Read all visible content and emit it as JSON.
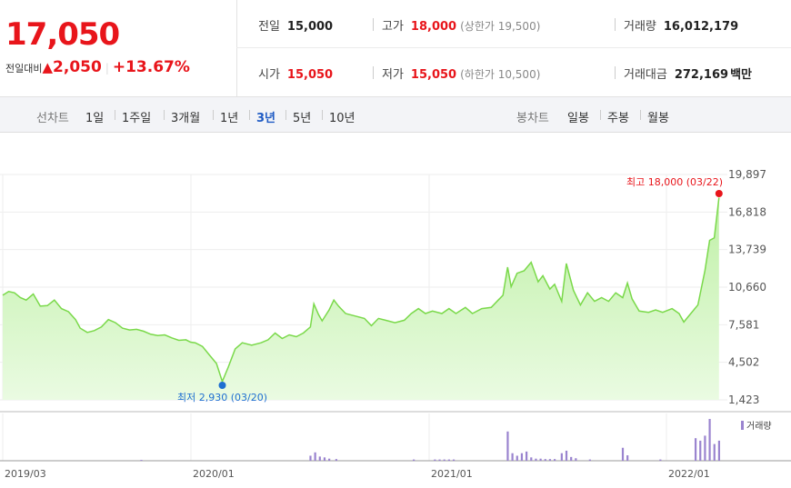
{
  "quote": {
    "price": "17,050",
    "change_label": "전일대비",
    "change_arrow": "▲",
    "change": "2,050",
    "change_pct": "+13.67%",
    "prev_close_label": "전일",
    "prev_close": "15,000",
    "high_label": "고가",
    "high": "18,000",
    "upper_limit": "(상한가 19,500)",
    "volume_label": "거래량",
    "volume": "16,012,179",
    "open_label": "시가",
    "open": "15,050",
    "low_label": "저가",
    "low": "15,050",
    "lower_limit": "(하한가 10,500)",
    "trade_value_label": "거래대금",
    "trade_value": "272,169",
    "trade_value_unit": "백만"
  },
  "toolbar": {
    "line_chart_label": "선차트",
    "periods": [
      "1일",
      "1주일",
      "3개월",
      "1년",
      "3년",
      "5년",
      "10년"
    ],
    "selected_period": "3년",
    "candle_chart_label": "봉차트",
    "candles": [
      "일봉",
      "주봉",
      "월봉"
    ]
  },
  "colors": {
    "up": "#e8151b",
    "selected": "#1f5bc4",
    "line": "#7ad94a",
    "volume": "#9a84cf",
    "low_marker": "#1f6fd1"
  },
  "chart_data": {
    "type": "area",
    "y_ticks": [
      "19,897",
      "16,818",
      "13,739",
      "10,660",
      "7,581",
      "4,502",
      "1,423"
    ],
    "ylim": [
      1423,
      19897
    ],
    "x_ticks": [
      "2019/03",
      "2020/01",
      "2021/01",
      "2022/01"
    ],
    "grid": true,
    "high_annotation": "최고 18,000 (03/22)",
    "low_annotation": "최저 2,930 (03/20)",
    "volume_legend": "거래량",
    "price_series": [
      [
        0.0,
        10000
      ],
      [
        0.25,
        10300
      ],
      [
        0.5,
        10200
      ],
      [
        0.75,
        9800
      ],
      [
        1.0,
        9600
      ],
      [
        1.3,
        10100
      ],
      [
        1.6,
        9100
      ],
      [
        1.9,
        9150
      ],
      [
        2.2,
        9600
      ],
      [
        2.5,
        8900
      ],
      [
        2.8,
        8650
      ],
      [
        3.1,
        8000
      ],
      [
        3.3,
        7300
      ],
      [
        3.6,
        6950
      ],
      [
        3.9,
        7100
      ],
      [
        4.2,
        7400
      ],
      [
        4.5,
        8000
      ],
      [
        4.8,
        7750
      ],
      [
        5.1,
        7300
      ],
      [
        5.4,
        7150
      ],
      [
        5.7,
        7200
      ],
      [
        6.0,
        7050
      ],
      [
        6.3,
        6800
      ],
      [
        6.6,
        6700
      ],
      [
        6.9,
        6750
      ],
      [
        7.2,
        6500
      ],
      [
        7.5,
        6300
      ],
      [
        7.8,
        6350
      ],
      [
        8.0,
        6150
      ],
      [
        8.2,
        6100
      ],
      [
        8.5,
        5800
      ],
      [
        8.8,
        5100
      ],
      [
        9.1,
        4400
      ],
      [
        9.35,
        2930
      ],
      [
        9.6,
        4100
      ],
      [
        9.9,
        5600
      ],
      [
        10.2,
        6100
      ],
      [
        10.6,
        5900
      ],
      [
        11.0,
        6100
      ],
      [
        11.3,
        6350
      ],
      [
        11.6,
        6900
      ],
      [
        11.9,
        6450
      ],
      [
        12.2,
        6750
      ],
      [
        12.5,
        6600
      ],
      [
        12.8,
        6900
      ],
      [
        13.1,
        7400
      ],
      [
        13.25,
        9300
      ],
      [
        13.45,
        8400
      ],
      [
        13.6,
        7900
      ],
      [
        13.9,
        8800
      ],
      [
        14.1,
        9600
      ],
      [
        14.3,
        9100
      ],
      [
        14.6,
        8500
      ],
      [
        15.0,
        8300
      ],
      [
        15.4,
        8100
      ],
      [
        15.7,
        7500
      ],
      [
        16.0,
        8100
      ],
      [
        16.3,
        7950
      ],
      [
        16.7,
        7750
      ],
      [
        17.1,
        7950
      ],
      [
        17.4,
        8500
      ],
      [
        17.7,
        8900
      ],
      [
        18.0,
        8500
      ],
      [
        18.3,
        8700
      ],
      [
        18.7,
        8500
      ],
      [
        19.0,
        8900
      ],
      [
        19.3,
        8500
      ],
      [
        19.7,
        9000
      ],
      [
        20.0,
        8500
      ],
      [
        20.4,
        8900
      ],
      [
        20.8,
        9000
      ],
      [
        21.1,
        9600
      ],
      [
        21.3,
        10000
      ],
      [
        21.5,
        12300
      ],
      [
        21.65,
        10700
      ],
      [
        21.9,
        11800
      ],
      [
        22.2,
        12000
      ],
      [
        22.5,
        12700
      ],
      [
        22.8,
        11100
      ],
      [
        23.0,
        11600
      ],
      [
        23.3,
        10500
      ],
      [
        23.5,
        10900
      ],
      [
        23.8,
        9500
      ],
      [
        24.0,
        12600
      ],
      [
        24.3,
        10400
      ],
      [
        24.6,
        9200
      ],
      [
        24.9,
        10200
      ],
      [
        25.2,
        9500
      ],
      [
        25.5,
        9800
      ],
      [
        25.8,
        9500
      ],
      [
        26.1,
        10200
      ],
      [
        26.4,
        9800
      ],
      [
        26.6,
        11000
      ],
      [
        26.8,
        9700
      ],
      [
        27.1,
        8700
      ],
      [
        27.5,
        8600
      ],
      [
        27.8,
        8800
      ],
      [
        28.1,
        8600
      ],
      [
        28.5,
        8900
      ],
      [
        28.8,
        8500
      ],
      [
        29.0,
        7800
      ],
      [
        29.3,
        8500
      ],
      [
        29.6,
        9200
      ],
      [
        29.9,
        12000
      ],
      [
        30.1,
        14500
      ],
      [
        30.3,
        14700
      ],
      [
        30.5,
        18000
      ]
    ],
    "volume_series": [
      [
        5.9,
        0.02
      ],
      [
        13.1,
        0.12
      ],
      [
        13.3,
        0.2
      ],
      [
        13.5,
        0.1
      ],
      [
        13.7,
        0.08
      ],
      [
        13.9,
        0.05
      ],
      [
        14.2,
        0.04
      ],
      [
        17.5,
        0.03
      ],
      [
        18.4,
        0.03
      ],
      [
        18.6,
        0.03
      ],
      [
        18.8,
        0.03
      ],
      [
        19.0,
        0.03
      ],
      [
        19.2,
        0.03
      ],
      [
        21.5,
        0.7
      ],
      [
        21.7,
        0.18
      ],
      [
        21.9,
        0.12
      ],
      [
        22.1,
        0.18
      ],
      [
        22.3,
        0.22
      ],
      [
        22.5,
        0.08
      ],
      [
        22.7,
        0.05
      ],
      [
        22.9,
        0.05
      ],
      [
        23.1,
        0.04
      ],
      [
        23.3,
        0.04
      ],
      [
        23.5,
        0.04
      ],
      [
        23.8,
        0.18
      ],
      [
        24.0,
        0.24
      ],
      [
        24.2,
        0.09
      ],
      [
        24.4,
        0.06
      ],
      [
        25.0,
        0.03
      ],
      [
        26.4,
        0.31
      ],
      [
        26.6,
        0.13
      ],
      [
        28.0,
        0.03
      ],
      [
        29.5,
        0.54
      ],
      [
        29.7,
        0.48
      ],
      [
        29.9,
        0.6
      ],
      [
        30.1,
        1.0
      ],
      [
        30.3,
        0.4
      ],
      [
        30.5,
        0.48
      ]
    ]
  }
}
